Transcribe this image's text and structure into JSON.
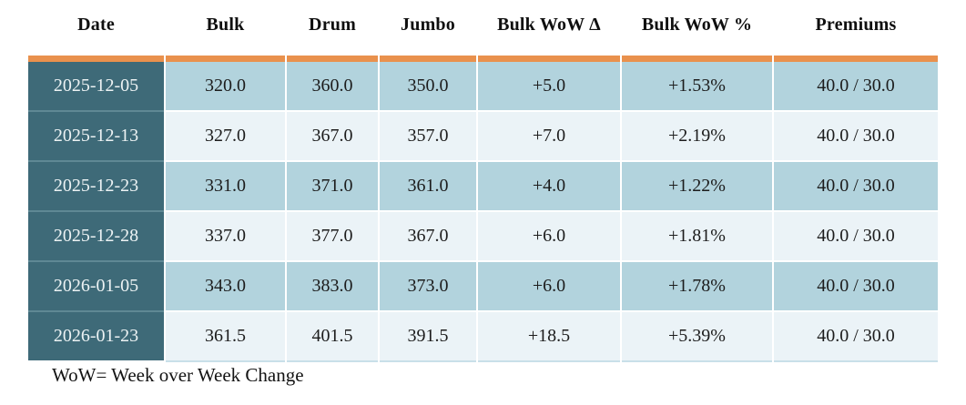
{
  "chart_data": {
    "type": "table",
    "title": "",
    "columns": [
      "Date",
      "Bulk",
      "Drum",
      "Jumbo",
      "Bulk WoW Δ",
      "Bulk WoW %",
      "Premiums"
    ],
    "rows": [
      [
        "2025-12-05",
        "320.0",
        "360.0",
        "350.0",
        "+5.0",
        "+1.53%",
        "40.0 / 30.0"
      ],
      [
        "2025-12-13",
        "327.0",
        "367.0",
        "357.0",
        "+7.0",
        "+2.19%",
        "40.0 / 30.0"
      ],
      [
        "2025-12-23",
        "331.0",
        "371.0",
        "361.0",
        "+4.0",
        "+1.22%",
        "40.0 / 30.0"
      ],
      [
        "2025-12-28",
        "337.0",
        "377.0",
        "367.0",
        "+6.0",
        "+1.81%",
        "40.0 / 30.0"
      ],
      [
        "2026-01-05",
        "343.0",
        "383.0",
        "373.0",
        "+6.0",
        "+1.78%",
        "40.0 / 30.0"
      ],
      [
        "2026-01-23",
        "361.5",
        "401.5",
        "391.5",
        "+18.5",
        "+5.39%",
        "40.0 / 30.0"
      ]
    ],
    "footnote": "WoW= Week over Week Change",
    "layout": {
      "row_striping": "alternating",
      "header_position": "top",
      "date_column_highlighted": true
    }
  },
  "colors": {
    "accent_orange": "#e9914d",
    "date_column_teal": "#3e6a78",
    "row_blue": "#b2d3dd",
    "row_pale": "#ebf3f7",
    "header_text": "#0f0f0f",
    "cell_text": "#1c1c1c",
    "date_text": "#edf3f4"
  }
}
